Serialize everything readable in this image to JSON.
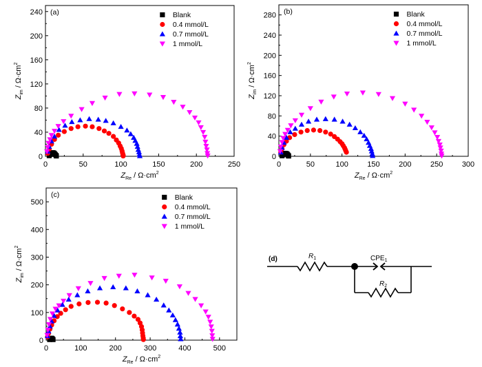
{
  "chart_data": [
    {
      "type": "scatter",
      "panel_label": "(a)",
      "xlabel": {
        "main": "Z",
        "sub": "Re",
        "unit": " / Ω·cm",
        "sup": "2"
      },
      "ylabel": {
        "main": "Z",
        "sub": "im",
        "unit": " / Ω·cm",
        "sup": "2"
      },
      "xlim": [
        0,
        250
      ],
      "ylim": [
        0,
        250
      ],
      "xticks": [
        0,
        50,
        100,
        150,
        200,
        250
      ],
      "yticks": [
        0,
        40,
        80,
        120,
        160,
        200,
        240
      ],
      "legend_position": "top-right",
      "series": [
        {
          "name": "Blank",
          "marker": "square",
          "color": "#000000",
          "x": [
            5,
            6,
            7,
            8,
            9,
            10,
            11,
            12,
            13,
            14,
            14.5
          ],
          "y": [
            1,
            3,
            4.5,
            5.5,
            6,
            6,
            5.5,
            4.5,
            3,
            1.5,
            0.5
          ]
        },
        {
          "name": "0.4 mmol/L",
          "marker": "circle",
          "color": "#ff0000",
          "x": [
            3,
            5,
            8,
            12,
            17,
            25,
            34,
            43,
            53,
            62,
            71,
            78,
            84,
            90,
            94,
            97,
            99,
            100.5,
            101.5,
            102,
            102.5,
            103,
            103
          ],
          "y": [
            5,
            12,
            20,
            28,
            35,
            41,
            46,
            49,
            50,
            49,
            46,
            42,
            38,
            33,
            27,
            22,
            17,
            13,
            9,
            6,
            4,
            2,
            0.5
          ]
        },
        {
          "name": "0.7 mmol/L",
          "marker": "triangle-up",
          "color": "#0000ff",
          "x": [
            3,
            5,
            8,
            12,
            18,
            26,
            35,
            46,
            58,
            70,
            80,
            90,
            100,
            108,
            113,
            117,
            119,
            121,
            122,
            123,
            124,
            124.5,
            125
          ],
          "y": [
            8,
            16,
            25,
            33,
            44,
            51,
            57,
            60,
            62,
            61,
            59,
            55,
            49,
            43,
            37,
            31,
            26,
            21,
            16,
            11,
            7,
            3,
            0.5
          ]
        },
        {
          "name": "1 mmol/L",
          "marker": "triangle-down",
          "color": "#ff00ff",
          "x": [
            2,
            3,
            4,
            6,
            8,
            12,
            17,
            24,
            34,
            48,
            62,
            79,
            98,
            118,
            138,
            156,
            170,
            182,
            191,
            198,
            203,
            206,
            209,
            211,
            212,
            213,
            214,
            214.5,
            215
          ],
          "y": [
            8,
            15,
            22,
            28,
            35,
            42,
            50,
            58,
            67,
            78,
            88,
            97,
            103,
            104,
            102,
            98,
            90,
            82,
            73,
            64,
            56,
            48,
            40,
            32,
            24,
            17,
            11,
            5,
            1
          ]
        }
      ]
    },
    {
      "type": "scatter",
      "panel_label": "(b)",
      "xlabel": {
        "main": "Z",
        "sub": "Re",
        "unit": " / Ω·cm",
        "sup": "2"
      },
      "ylabel": {
        "main": "Z",
        "sub": "im",
        "unit": " / Ω·cm",
        "sup": "2"
      },
      "xlim": [
        0,
        300
      ],
      "ylim": [
        0,
        300
      ],
      "xticks": [
        0,
        50,
        100,
        150,
        200,
        250,
        300
      ],
      "yticks": [
        0,
        40,
        80,
        120,
        160,
        200,
        240,
        280
      ],
      "legend_position": "top-right",
      "series": [
        {
          "name": "Blank",
          "marker": "square",
          "color": "#000000",
          "x": [
            5,
            6,
            7,
            8,
            10,
            12,
            13,
            14,
            15,
            15.5
          ],
          "y": [
            1,
            3,
            4.5,
            5.5,
            6,
            5.5,
            4.5,
            3,
            1.5,
            0.5
          ]
        },
        {
          "name": "0.4 mmol/L",
          "marker": "circle",
          "color": "#ff0000",
          "x": [
            3,
            5,
            8,
            12,
            17,
            25,
            35,
            45,
            55,
            65,
            74,
            82,
            88,
            93,
            97,
            100,
            102,
            104,
            105,
            106,
            107
          ],
          "y": [
            8,
            15,
            23,
            30,
            37,
            43,
            48,
            51,
            52,
            51,
            48,
            44,
            39,
            34,
            29,
            25,
            21,
            17,
            14,
            11,
            8
          ]
        },
        {
          "name": "0.7 mmol/L",
          "marker": "triangle-up",
          "color": "#0000ff",
          "x": [
            3,
            5,
            8,
            12,
            18,
            26,
            36,
            47,
            60,
            74,
            88,
            101,
            112,
            121,
            129,
            135,
            139,
            142,
            144,
            146,
            147,
            148,
            148.5
          ],
          "y": [
            8,
            17,
            27,
            37,
            48,
            55,
            63,
            69,
            73,
            74,
            73,
            69,
            63,
            56,
            48,
            41,
            34,
            27,
            21,
            15,
            10,
            5,
            1
          ]
        },
        {
          "name": "1 mmol/L",
          "marker": "triangle-down",
          "color": "#ff00ff",
          "x": [
            2,
            3,
            5,
            7,
            10,
            14,
            19,
            26,
            36,
            50,
            67,
            87,
            108,
            133,
            158,
            180,
            200,
            214,
            226,
            235,
            242,
            247,
            251,
            253,
            255,
            256,
            257,
            257.5,
            258
          ],
          "y": [
            10,
            19,
            28,
            36,
            44,
            52,
            61,
            71,
            82,
            95,
            108,
            118,
            124,
            126,
            123,
            115,
            104,
            92,
            80,
            68,
            57,
            47,
            38,
            30,
            23,
            17,
            11,
            5,
            1
          ]
        }
      ]
    },
    {
      "type": "scatter",
      "panel_label": "(c)",
      "xlabel": {
        "main": "Z",
        "sub": "Re",
        "unit": " / Ω·cm",
        "sup": "2"
      },
      "ylabel": {
        "main": "Z",
        "sub": "im",
        "unit": " / Ω·cm",
        "sup": "2"
      },
      "xlim": [
        0,
        550
      ],
      "ylim": [
        0,
        550
      ],
      "xticks": [
        0,
        100,
        200,
        300,
        400,
        500
      ],
      "yticks": [
        0,
        100,
        200,
        300,
        400,
        500
      ],
      "legend_position": "top-right",
      "series": [
        {
          "name": "Blank",
          "marker": "square",
          "color": "#000000",
          "x": [
            10,
            12,
            14,
            16,
            18,
            20
          ],
          "y": [
            2,
            5,
            7,
            7,
            5,
            2
          ]
        },
        {
          "name": "0.4 mmol/L",
          "marker": "circle",
          "color": "#ff0000",
          "x": [
            4,
            7,
            11,
            16,
            23,
            32,
            42,
            56,
            72,
            95,
            121,
            148,
            173,
            197,
            220,
            240,
            254,
            265,
            271,
            275,
            277,
            278,
            279,
            280,
            280.5
          ],
          "y": [
            12,
            25,
            40,
            55,
            70,
            85,
            97,
            110,
            122,
            131,
            136,
            137,
            134,
            125,
            113,
            100,
            87,
            75,
            62,
            49,
            37,
            26,
            16,
            8,
            2
          ]
        },
        {
          "name": "0.7 mmol/L",
          "marker": "triangle-up",
          "color": "#0000ff",
          "x": [
            4,
            7,
            11,
            16,
            23,
            33,
            47,
            65,
            90,
            120,
            155,
            193,
            230,
            263,
            293,
            318,
            339,
            354,
            365,
            373,
            379,
            383,
            386,
            387,
            388
          ],
          "y": [
            15,
            32,
            50,
            68,
            88,
            108,
            128,
            147,
            163,
            177,
            188,
            192,
            188,
            177,
            163,
            147,
            126,
            108,
            90,
            73,
            57,
            42,
            28,
            15,
            4
          ]
        },
        {
          "name": "1 mmol/L",
          "marker": "triangle-down",
          "color": "#ff00ff",
          "x": [
            3,
            5,
            8,
            12,
            18,
            27,
            37,
            50,
            67,
            93,
            128,
            168,
            210,
            255,
            305,
            345,
            385,
            410,
            430,
            447,
            460,
            468,
            473,
            476,
            478,
            479,
            480
          ],
          "y": [
            18,
            37,
            57,
            76,
            96,
            113,
            125,
            142,
            162,
            187,
            206,
            224,
            232,
            236,
            226,
            214,
            194,
            170,
            148,
            125,
            103,
            84,
            66,
            49,
            33,
            17,
            4
          ]
        }
      ]
    }
  ],
  "circuit": {
    "panel_label": "(d)",
    "r1_label": "R",
    "r1_sub": "1",
    "cpe_label": "CPE",
    "cpe_sub": "1",
    "r2_label": "R",
    "r2_sub": "2"
  }
}
